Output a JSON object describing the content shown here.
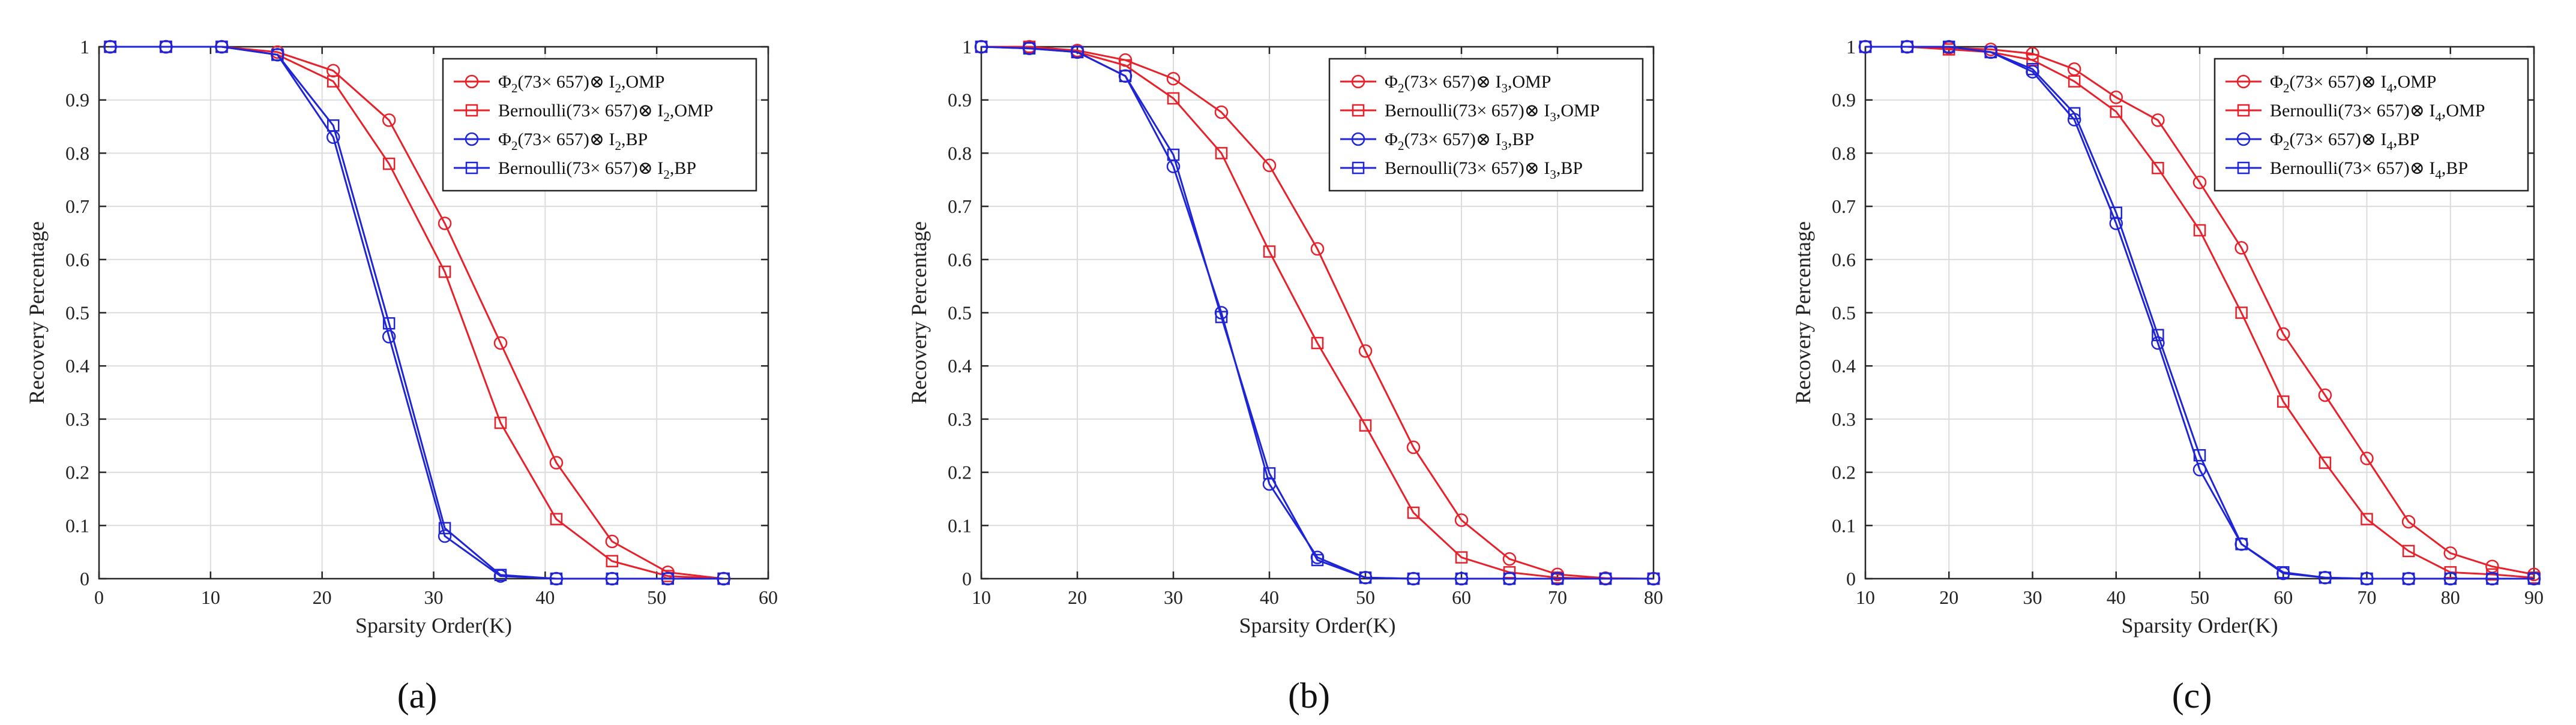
{
  "figure": {
    "panel_labels": [
      "(a)",
      "(b)",
      "(c)"
    ]
  },
  "colors": {
    "red": "#e8202a",
    "blue": "#1f25d6",
    "axis": "#262626",
    "grid": "#dcdcdc"
  },
  "chart_data": [
    {
      "type": "line",
      "panel": "(a)",
      "xlabel": "Sparsity Order(K)",
      "ylabel": "Recovery Percentage",
      "xlim": [
        0,
        60
      ],
      "ylim": [
        0,
        1
      ],
      "xticks": [
        0,
        10,
        20,
        30,
        40,
        50,
        60
      ],
      "yticks": [
        0,
        0.1,
        0.2,
        0.3,
        0.4,
        0.5,
        0.6,
        0.7,
        0.8,
        0.9,
        1
      ],
      "grid": true,
      "legend_position": "top-right",
      "x": [
        1,
        6,
        11,
        16,
        21,
        26,
        31,
        36,
        41,
        46,
        51,
        56
      ],
      "series": [
        {
          "name_main": "Φ",
          "name_sub1": "2",
          "name_mid": "(73× 657)⊗ I",
          "name_sub2": "2",
          "name_end": ",OMP",
          "color": "#e8202a",
          "marker": "circle",
          "values": [
            1,
            1,
            1,
            0.99,
            0.955,
            0.862,
            0.668,
            0.443,
            0.218,
            0.07,
            0.012,
            0
          ]
        },
        {
          "name_main": "Bernoulli",
          "name_sub1": "",
          "name_mid": "(73× 657)⊗ I",
          "name_sub2": "2",
          "name_end": ",OMP",
          "color": "#e8202a",
          "marker": "square",
          "values": [
            1,
            1,
            1,
            0.985,
            0.935,
            0.78,
            0.577,
            0.293,
            0.112,
            0.033,
            0.005,
            0
          ]
        },
        {
          "name_main": "Φ",
          "name_sub1": "2",
          "name_mid": "(73× 657)⊗ I",
          "name_sub2": "2",
          "name_end": ",BP",
          "color": "#1f25d6",
          "marker": "circle",
          "values": [
            1,
            1,
            1,
            0.985,
            0.83,
            0.455,
            0.08,
            0.005,
            0,
            0,
            0,
            0
          ]
        },
        {
          "name_main": "Bernoulli",
          "name_sub1": "",
          "name_mid": "(73× 657)⊗ I",
          "name_sub2": "2",
          "name_end": ",BP",
          "color": "#1f25d6",
          "marker": "square",
          "values": [
            1,
            1,
            1,
            0.985,
            0.852,
            0.48,
            0.095,
            0.007,
            0,
            0,
            0,
            0
          ]
        }
      ]
    },
    {
      "type": "line",
      "panel": "(b)",
      "xlabel": "Sparsity Order(K)",
      "ylabel": "Recovery Percentage",
      "xlim": [
        10,
        80
      ],
      "ylim": [
        0,
        1
      ],
      "xticks": [
        10,
        20,
        30,
        40,
        50,
        60,
        70,
        80
      ],
      "yticks": [
        0,
        0.1,
        0.2,
        0.3,
        0.4,
        0.5,
        0.6,
        0.7,
        0.8,
        0.9,
        1
      ],
      "grid": true,
      "legend_position": "top-right",
      "x": [
        10,
        15,
        20,
        25,
        30,
        35,
        40,
        45,
        50,
        55,
        60,
        65,
        70,
        75,
        80
      ],
      "series": [
        {
          "name_main": "Φ",
          "name_sub1": "2",
          "name_mid": "(73× 657)⊗ I",
          "name_sub2": "3",
          "name_end": ",OMP",
          "color": "#e8202a",
          "marker": "circle",
          "values": [
            1,
            1,
            0.993,
            0.975,
            0.94,
            0.877,
            0.777,
            0.62,
            0.428,
            0.247,
            0.11,
            0.037,
            0.008,
            0.001,
            0
          ]
        },
        {
          "name_main": "Bernoulli",
          "name_sub1": "",
          "name_mid": "(73× 657)⊗ I",
          "name_sub2": "3",
          "name_end": ",OMP",
          "color": "#e8202a",
          "marker": "square",
          "values": [
            1,
            1,
            0.99,
            0.965,
            0.903,
            0.8,
            0.615,
            0.443,
            0.288,
            0.124,
            0.04,
            0.012,
            0.002,
            0,
            0
          ]
        },
        {
          "name_main": "Φ",
          "name_sub1": "2",
          "name_mid": "(73× 657)⊗ I",
          "name_sub2": "3",
          "name_end": ",BP",
          "color": "#1f25d6",
          "marker": "circle",
          "values": [
            1,
            0.997,
            0.99,
            0.945,
            0.775,
            0.5,
            0.178,
            0.04,
            0.002,
            0,
            0,
            0,
            0,
            0,
            0
          ]
        },
        {
          "name_main": "Bernoulli",
          "name_sub1": "",
          "name_mid": "(73× 657)⊗ I",
          "name_sub2": "3",
          "name_end": ",BP",
          "color": "#1f25d6",
          "marker": "square",
          "values": [
            1,
            0.997,
            0.99,
            0.945,
            0.797,
            0.492,
            0.198,
            0.035,
            0.002,
            0,
            0,
            0,
            0,
            0,
            0
          ]
        }
      ]
    },
    {
      "type": "line",
      "panel": "(c)",
      "xlabel": "Sparsity Order(K)",
      "ylabel": "Recovery Percentage",
      "xlim": [
        10,
        90
      ],
      "ylim": [
        0,
        1
      ],
      "xticks": [
        10,
        20,
        30,
        40,
        50,
        60,
        70,
        80,
        90
      ],
      "yticks": [
        0,
        0.1,
        0.2,
        0.3,
        0.4,
        0.5,
        0.6,
        0.7,
        0.8,
        0.9,
        1
      ],
      "grid": true,
      "legend_position": "top-right",
      "x": [
        10,
        15,
        20,
        25,
        30,
        35,
        40,
        45,
        50,
        55,
        60,
        65,
        70,
        75,
        80,
        85,
        90
      ],
      "series": [
        {
          "name_main": "Φ",
          "name_sub1": "2",
          "name_mid": "(73× 657)⊗ I",
          "name_sub2": "4",
          "name_end": ",OMP",
          "color": "#e8202a",
          "marker": "circle",
          "values": [
            1,
            1,
            0.998,
            0.995,
            0.987,
            0.958,
            0.905,
            0.862,
            0.745,
            0.622,
            0.46,
            0.345,
            0.226,
            0.107,
            0.048,
            0.023,
            0.008
          ]
        },
        {
          "name_main": "Bernoulli",
          "name_sub1": "",
          "name_mid": "(73× 657)⊗ I",
          "name_sub2": "4",
          "name_end": ",OMP",
          "color": "#e8202a",
          "marker": "square",
          "values": [
            1,
            1,
            0.995,
            0.99,
            0.975,
            0.935,
            0.878,
            0.772,
            0.655,
            0.5,
            0.333,
            0.218,
            0.112,
            0.052,
            0.012,
            0.008,
            0.002
          ]
        },
        {
          "name_main": "Φ",
          "name_sub1": "2",
          "name_mid": "(73× 657)⊗ I",
          "name_sub2": "4",
          "name_end": ",BP",
          "color": "#1f25d6",
          "marker": "circle",
          "values": [
            1,
            1,
            1,
            0.99,
            0.953,
            0.863,
            0.668,
            0.443,
            0.205,
            0.065,
            0.01,
            0.002,
            0,
            0,
            0,
            0,
            0
          ]
        },
        {
          "name_main": "Bernoulli",
          "name_sub1": "",
          "name_mid": "(73× 657)⊗ I",
          "name_sub2": "4",
          "name_end": ",BP",
          "color": "#1f25d6",
          "marker": "square",
          "values": [
            1,
            1,
            1,
            0.99,
            0.958,
            0.875,
            0.688,
            0.458,
            0.232,
            0.065,
            0.012,
            0.002,
            0,
            0,
            0,
            0,
            0
          ]
        }
      ]
    }
  ]
}
